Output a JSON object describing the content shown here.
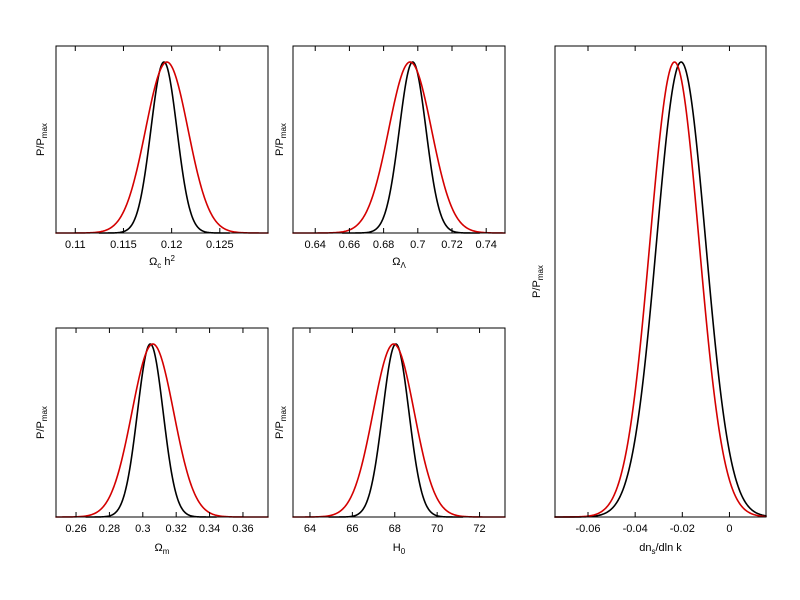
{
  "colors": {
    "black_curve": "#000000",
    "red_curve": "#d40000"
  },
  "chart_data": [
    {
      "type": "line",
      "ylabel": {
        "main": "P/P",
        "sub": "max"
      },
      "xlabel": {
        "main": "Ω",
        "sub": "c",
        "rest": " h",
        "sup": "2"
      },
      "xlim": [
        0.108,
        0.13
      ],
      "xticks": [
        0.11,
        0.115,
        0.12,
        0.125
      ],
      "xtick_labels": [
        "0.11",
        "0.115",
        "0.12",
        "0.125"
      ],
      "y_ticks_shown": false,
      "series": [
        {
          "color": "#000000",
          "mean": 0.1192,
          "sigma": 0.00135,
          "range": [
            0.1125,
            0.126
          ]
        },
        {
          "color": "#d40000",
          "mean": 0.1195,
          "sigma": 0.0022,
          "range": [
            0.108,
            0.13
          ]
        }
      ]
    },
    {
      "type": "line",
      "ylabel": {
        "main": "P/P",
        "sub": "max"
      },
      "xlabel": {
        "main": "Ω",
        "sub": "Λ"
      },
      "xlim": [
        0.627,
        0.751
      ],
      "xticks": [
        0.64,
        0.66,
        0.68,
        0.7,
        0.72,
        0.74
      ],
      "xtick_labels": [
        "0.64",
        "0.66",
        "0.68",
        "0.7",
        "0.72",
        "0.74"
      ],
      "y_ticks_shown": false,
      "series": [
        {
          "color": "#000000",
          "mean": 0.697,
          "sigma": 0.0078,
          "range": [
            0.656,
            0.736
          ]
        },
        {
          "color": "#d40000",
          "mean": 0.6955,
          "sigma": 0.0125,
          "range": [
            0.627,
            0.751
          ]
        }
      ]
    },
    {
      "type": "line",
      "ylabel": {
        "main": "P/P",
        "sub": "max"
      },
      "xlabel": {
        "main": "Ω",
        "sub": "m"
      },
      "xlim": [
        0.248,
        0.375
      ],
      "xticks": [
        0.26,
        0.28,
        0.3,
        0.32,
        0.34,
        0.36
      ],
      "xtick_labels": [
        "0.26",
        "0.28",
        "0.3",
        "0.32",
        "0.34",
        "0.36"
      ],
      "y_ticks_shown": false,
      "series": [
        {
          "color": "#000000",
          "mean": 0.3045,
          "sigma": 0.0077,
          "range": [
            0.266,
            0.344
          ]
        },
        {
          "color": "#d40000",
          "mean": 0.306,
          "sigma": 0.0125,
          "range": [
            0.248,
            0.375
          ]
        }
      ]
    },
    {
      "type": "line",
      "ylabel": {
        "main": "P/P",
        "sub": "max"
      },
      "xlabel": {
        "main": "H",
        "sub": "0"
      },
      "xlim": [
        63.2,
        73.2
      ],
      "xticks": [
        64,
        66,
        68,
        70,
        72
      ],
      "xtick_labels": [
        "64",
        "66",
        "68",
        "70",
        "72"
      ],
      "y_ticks_shown": false,
      "series": [
        {
          "color": "#000000",
          "mean": 68.05,
          "sigma": 0.62,
          "range": [
            64.9,
            71.2
          ]
        },
        {
          "color": "#d40000",
          "mean": 67.95,
          "sigma": 0.97,
          "range": [
            63.2,
            73.2
          ]
        }
      ]
    },
    {
      "type": "line",
      "ylabel": {
        "main": "P/P",
        "sub": "max"
      },
      "xlabel": {
        "main": "dn",
        "sub": "s",
        "rest": "/dln k"
      },
      "xlim": [
        -0.074,
        0.0155
      ],
      "xticks": [
        -0.06,
        -0.04,
        -0.02,
        0
      ],
      "xtick_labels": [
        "-0.06",
        "-0.04",
        "-0.02",
        "0"
      ],
      "y_ticks_shown": false,
      "series": [
        {
          "color": "#000000",
          "mean": -0.0205,
          "sigma": 0.0104,
          "range": [
            -0.074,
            0.0155
          ]
        },
        {
          "color": "#d40000",
          "mean": -0.0233,
          "sigma": 0.0104,
          "range": [
            -0.074,
            0.0155
          ]
        }
      ]
    }
  ]
}
